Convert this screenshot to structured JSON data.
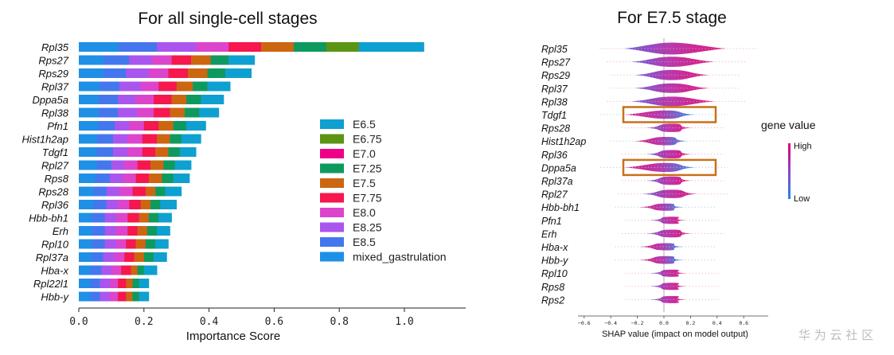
{
  "chart_data": [
    {
      "type": "bar",
      "stacked": true,
      "orientation": "horizontal",
      "title": "For all single-cell stages",
      "xlabel": "Importance Score",
      "ylabel": "",
      "xlim": [
        0.0,
        1.15
      ],
      "xticks": [
        "0.0",
        "0.2",
        "0.4",
        "0.6",
        "0.8",
        "1.0"
      ],
      "legend_position": "center-right",
      "categories": [
        "Rpl35",
        "Rps27",
        "Rps29",
        "Rpl37",
        "Dppa5a",
        "Rpl38",
        "Pfn1",
        "Hist1h2ap",
        "Tdgf1",
        "Rpl27",
        "Rps8",
        "Rps28",
        "Rpl36",
        "Hbb-bh1",
        "Erh",
        "Rpl10",
        "Rpl37a",
        "Hba-x",
        "Rpl22l1",
        "Hbb-y"
      ],
      "series": [
        {
          "name": "mixed_gastrulation",
          "color": "#1e90e6",
          "values": [
            0.12,
            0.075,
            0.075,
            0.065,
            0.06,
            0.06,
            0.06,
            0.055,
            0.055,
            0.055,
            0.05,
            0.045,
            0.045,
            0.04,
            0.04,
            0.04,
            0.04,
            0.035,
            0.035,
            0.035
          ]
        },
        {
          "name": "E8.5",
          "color": "#4477ee",
          "values": [
            0.12,
            0.08,
            0.07,
            0.06,
            0.06,
            0.06,
            0.05,
            0.05,
            0.05,
            0.045,
            0.045,
            0.04,
            0.04,
            0.04,
            0.04,
            0.04,
            0.035,
            0.035,
            0.03,
            0.03
          ]
        },
        {
          "name": "E8.25",
          "color": "#aa55ee",
          "values": [
            0.12,
            0.07,
            0.07,
            0.065,
            0.055,
            0.06,
            0.045,
            0.045,
            0.045,
            0.04,
            0.04,
            0.04,
            0.035,
            0.035,
            0.035,
            0.035,
            0.035,
            0.03,
            0.03,
            0.03
          ]
        },
        {
          "name": "E8.0",
          "color": "#dd44cc",
          "values": [
            0.1,
            0.06,
            0.06,
            0.055,
            0.055,
            0.05,
            0.045,
            0.045,
            0.045,
            0.04,
            0.04,
            0.04,
            0.035,
            0.035,
            0.035,
            0.03,
            0.03,
            0.03,
            0.025,
            0.025
          ]
        },
        {
          "name": "E7.75",
          "color": "#f5174d",
          "values": [
            0.1,
            0.06,
            0.06,
            0.055,
            0.055,
            0.05,
            0.045,
            0.045,
            0.04,
            0.04,
            0.04,
            0.04,
            0.035,
            0.035,
            0.03,
            0.03,
            0.03,
            0.03,
            0.025,
            0.025
          ]
        },
        {
          "name": "E7.5",
          "color": "#cc6611",
          "values": [
            0.1,
            0.06,
            0.06,
            0.05,
            0.045,
            0.045,
            0.045,
            0.04,
            0.04,
            0.04,
            0.04,
            0.03,
            0.03,
            0.03,
            0.03,
            0.03,
            0.03,
            0.02,
            0.02,
            0.02
          ]
        },
        {
          "name": "E7.25",
          "color": "#0e9a5e",
          "values": [
            0.1,
            0.055,
            0.055,
            0.045,
            0.045,
            0.045,
            0.04,
            0.035,
            0.035,
            0.035,
            0.035,
            0.03,
            0.03,
            0.03,
            0.03,
            0.03,
            0.03,
            0.02,
            0.02,
            0.02
          ]
        },
        {
          "name": "E7.0",
          "color": "#ee0088",
          "values": [
            0.0,
            0.0,
            0.0,
            0.0,
            0.0,
            0.0,
            0.0,
            0.0,
            0.0,
            0.0,
            0.0,
            0.0,
            0.0,
            0.0,
            0.0,
            0.0,
            0.0,
            0.0,
            0.0,
            0.0
          ]
        },
        {
          "name": "E6.75",
          "color": "#5c9414",
          "values": [
            0.1,
            0.0,
            0.0,
            0.0,
            0.0,
            0.0,
            0.0,
            0.0,
            0.0,
            0.0,
            0.0,
            0.0,
            0.0,
            0.0,
            0.0,
            0.0,
            0.0,
            0.0,
            0.0,
            0.0
          ]
        },
        {
          "name": "E6.5",
          "color": "#0ea0d0",
          "values": [
            0.2,
            0.08,
            0.08,
            0.07,
            0.07,
            0.06,
            0.06,
            0.06,
            0.05,
            0.05,
            0.05,
            0.05,
            0.05,
            0.04,
            0.04,
            0.04,
            0.04,
            0.04,
            0.03,
            0.03
          ]
        }
      ],
      "legend": [
        "E6.5",
        "E6.75",
        "E7.0",
        "E7.25",
        "E7.5",
        "E7.75",
        "E8.0",
        "E8.25",
        "E8.5",
        "mixed_gastrulation"
      ],
      "legend_colors": [
        "#0ea0d0",
        "#5c9414",
        "#ee0088",
        "#0e9a5e",
        "#cc6611",
        "#f5174d",
        "#dd44cc",
        "#aa55ee",
        "#4477ee",
        "#1e90e6"
      ]
    },
    {
      "type": "scatter",
      "subtype": "shap-beeswarm",
      "title": "For E7.5 stage",
      "xlabel": "SHAP value (impact on model output)",
      "xlim": [
        -0.7,
        0.7
      ],
      "xticks": [
        "−0.6",
        "−0.4",
        "−0.2",
        "0.0",
        "0.2",
        "0.4",
        "0.6"
      ],
      "colorbar": {
        "title": "gene value",
        "high": "High",
        "low": "Low"
      },
      "features": [
        {
          "name": "Rpl35",
          "spread": 0.55,
          "width": 1.0,
          "high_side": "right",
          "highlighted": false
        },
        {
          "name": "Rps27",
          "spread": 0.45,
          "width": 0.85,
          "high_side": "right",
          "highlighted": false
        },
        {
          "name": "Rps29",
          "spread": 0.4,
          "width": 0.85,
          "high_side": "right",
          "highlighted": false
        },
        {
          "name": "Rpl37",
          "spread": 0.4,
          "width": 0.8,
          "high_side": "right",
          "highlighted": false
        },
        {
          "name": "Rpl38",
          "spread": 0.45,
          "width": 0.8,
          "high_side": "right",
          "highlighted": false
        },
        {
          "name": "Tdgf1",
          "spread": 0.4,
          "width": 0.7,
          "high_side": "left",
          "highlighted": true
        },
        {
          "name": "Rps28",
          "spread": 0.25,
          "width": 0.7,
          "high_side": "right",
          "highlighted": false
        },
        {
          "name": "Hist1h2ap",
          "spread": 0.3,
          "width": 0.7,
          "high_side": "left",
          "highlighted": false
        },
        {
          "name": "Rpl36",
          "spread": 0.25,
          "width": 0.7,
          "high_side": "right",
          "highlighted": false
        },
        {
          "name": "Dppa5a",
          "spread": 0.4,
          "width": 0.75,
          "high_side": "left",
          "highlighted": true
        },
        {
          "name": "Rpl37a",
          "spread": 0.25,
          "width": 0.7,
          "high_side": "right",
          "highlighted": false
        },
        {
          "name": "Rpl27",
          "spread": 0.3,
          "width": 0.7,
          "high_side": "right",
          "highlighted": false
        },
        {
          "name": "Hbb-bh1",
          "spread": 0.25,
          "width": 0.6,
          "high_side": "left",
          "highlighted": false
        },
        {
          "name": "Pfn1",
          "spread": 0.2,
          "width": 0.6,
          "high_side": "right",
          "highlighted": false
        },
        {
          "name": "Erh",
          "spread": 0.25,
          "width": 0.65,
          "high_side": "right",
          "highlighted": false
        },
        {
          "name": "Hba-x",
          "spread": 0.25,
          "width": 0.6,
          "high_side": "left",
          "highlighted": false
        },
        {
          "name": "Hbb-y",
          "spread": 0.25,
          "width": 0.65,
          "high_side": "left",
          "highlighted": false
        },
        {
          "name": "Rpl10",
          "spread": 0.2,
          "width": 0.6,
          "high_side": "right",
          "highlighted": false
        },
        {
          "name": "Rps8",
          "spread": 0.2,
          "width": 0.6,
          "high_side": "right",
          "highlighted": false
        },
        {
          "name": "Rps2",
          "spread": 0.2,
          "width": 0.6,
          "high_side": "right",
          "highlighted": false
        }
      ]
    }
  ],
  "watermark": "华 为 云 社 区"
}
